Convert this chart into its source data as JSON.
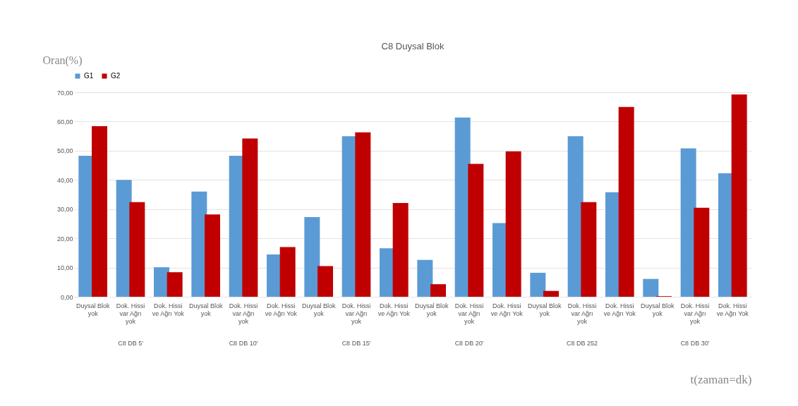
{
  "chart_data": {
    "type": "bar",
    "title": "C8 Duysal Blok",
    "ylabel": "Oran(%)",
    "xlabel": "t(zaman=dk)",
    "categories": [
      "Duysal Blok yok",
      "Dok. Hissi var Ağrı yok",
      "Dok. Hissi ve Ağrı Yok",
      "Duysal Blok yok",
      "Dok. Hissi var Ağrı yok",
      "Dok. Hissi ve Ağrı Yok",
      "Duysal Blok yok",
      "Dok. Hissi var Ağrı yok",
      "Dok. Hissi ve Ağrı Yok",
      "Duysal Blok yok",
      "Dok. Hissi var Ağrı yok",
      "Dok. Hissi ve Ağrı Yok",
      "Duysal Blok yok",
      "Dok. Hissi var Ağrı yok",
      "Dok. Hissi ve Ağrı Yok",
      "Duysal Blok yok",
      "Dok. Hissi var Ağrı yok",
      "Dok. Hissi ve Ağrı Yok"
    ],
    "annotations": [
      "C8 DB 5'",
      "C8 DB 10'",
      "C8 DB 15'",
      "C8 DB 20'",
      "C8 DB 252",
      "C8 DB 30'"
    ],
    "series": [
      {
        "name": "G1",
        "color": "#5b9bd5",
        "values": [
          48.3,
          40.0,
          10.1,
          36.0,
          48.3,
          14.5,
          27.3,
          55.0,
          16.6,
          12.6,
          61.4,
          25.2,
          8.2,
          55.0,
          35.8,
          6.1,
          50.8,
          42.3
        ]
      },
      {
        "name": "G2",
        "color": "#c00000",
        "values": [
          58.4,
          32.4,
          8.4,
          28.2,
          54.2,
          17.0,
          10.5,
          56.3,
          32.1,
          4.3,
          45.5,
          49.8,
          2.0,
          32.4,
          65.0,
          0.2,
          30.5,
          69.3
        ]
      }
    ],
    "ylim": [
      0,
      70
    ],
    "yticks": [
      {
        "value": 0,
        "label": "0,00"
      },
      {
        "value": 10,
        "label": "10,00"
      },
      {
        "value": 20,
        "label": "20,00"
      },
      {
        "value": 30,
        "label": "30,00"
      },
      {
        "value": 40,
        "label": "40,00"
      },
      {
        "value": 50,
        "label": "50,00"
      },
      {
        "value": 60,
        "label": "60,00"
      },
      {
        "value": 70,
        "label": "70,00"
      }
    ],
    "grid": "y",
    "legend": "top left"
  }
}
